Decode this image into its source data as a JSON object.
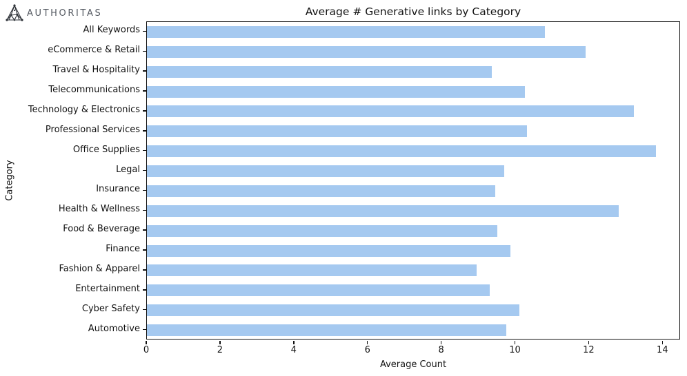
{
  "logo": {
    "brand": "AUTHORITAS",
    "icon": "authoritas-triangle-network-icon"
  },
  "chart_data": {
    "type": "bar",
    "orientation": "horizontal",
    "title": "Average # Generative links by Category",
    "xlabel": "Average Count",
    "ylabel": "Category",
    "categories": [
      "All Keywords",
      "eCommerce & Retail",
      "Travel & Hospitality",
      "Telecommunications",
      "Technology & Electronics",
      "Professional Services",
      "Office Supplies",
      "Legal",
      "Insurance",
      "Health & Wellness",
      "Food & Beverage",
      "Finance",
      "Fashion & Apparel",
      "Entertainment",
      "Cyber Safety",
      "Automotive"
    ],
    "values": [
      10.8,
      11.9,
      9.35,
      10.25,
      13.2,
      10.3,
      13.8,
      9.7,
      9.45,
      12.8,
      9.5,
      9.85,
      8.95,
      9.3,
      10.1,
      9.75
    ],
    "xticks": [
      0,
      2,
      4,
      6,
      8,
      10,
      12,
      14
    ],
    "xlim": [
      0,
      14.48
    ],
    "bar_color": "#a5c9f0",
    "grid": false,
    "legend": "none"
  }
}
